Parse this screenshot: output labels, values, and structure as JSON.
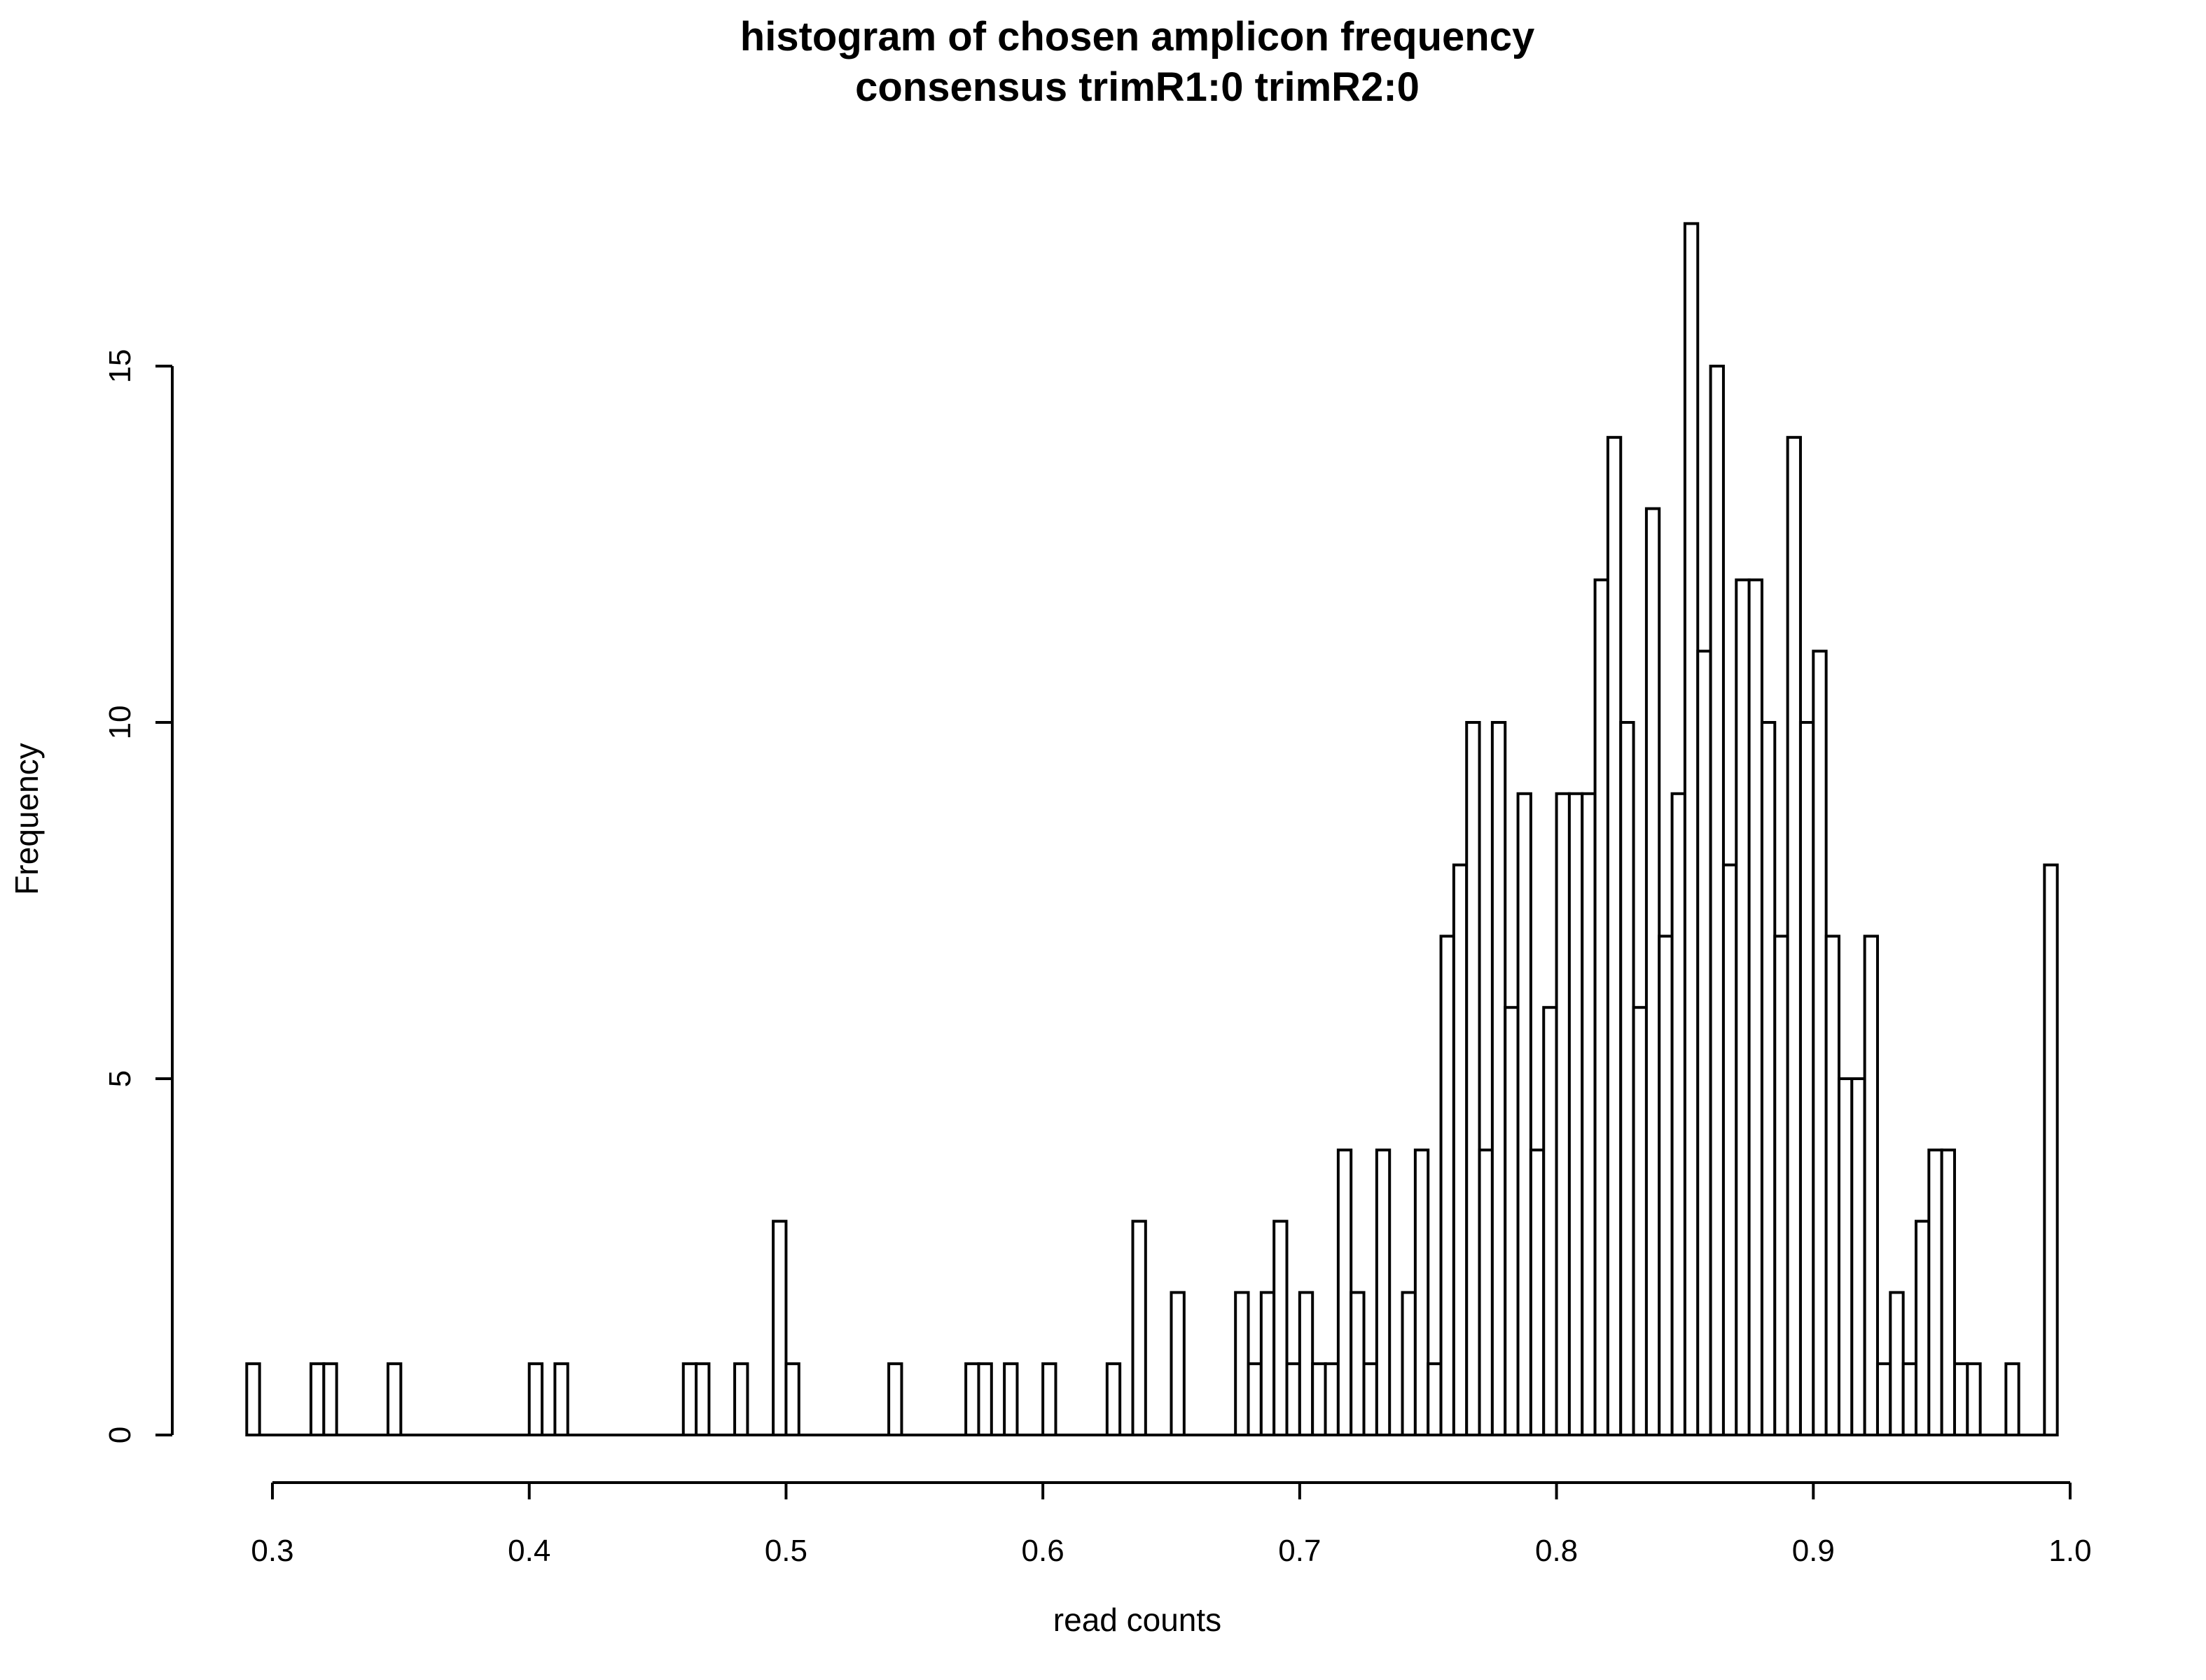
{
  "chart_data": {
    "type": "bar",
    "title": "histogram of chosen amplicon frequency",
    "subtitle": "consensus trimR1:0 trimR2:0",
    "xlabel": "read counts",
    "ylabel": "Frequency",
    "xlim": [
      0.29,
      1.0
    ],
    "ylim": [
      0,
      17
    ],
    "bin_width": 0.005,
    "bin_start": 0.29,
    "x_ticks": [
      0.3,
      0.4,
      0.5,
      0.6,
      0.7,
      0.8,
      0.9,
      1.0
    ],
    "x_tick_labels": [
      "0.3",
      "0.4",
      "0.5",
      "0.6",
      "0.7",
      "0.8",
      "0.9",
      "1.0"
    ],
    "y_ticks": [
      0,
      5,
      10,
      15
    ],
    "y_tick_labels": [
      "0",
      "5",
      "10",
      "15"
    ],
    "grid": false,
    "legend": "none",
    "bar_fill": "#ffffff",
    "bar_stroke": "#000000",
    "values": [
      1,
      0,
      0,
      0,
      0,
      1,
      1,
      0,
      0,
      0,
      0,
      1,
      0,
      0,
      0,
      0,
      0,
      0,
      0,
      0,
      0,
      0,
      1,
      0,
      1,
      0,
      0,
      0,
      0,
      0,
      0,
      0,
      0,
      0,
      1,
      1,
      0,
      0,
      1,
      0,
      0,
      3,
      1,
      0,
      0,
      0,
      0,
      0,
      0,
      0,
      1,
      0,
      0,
      0,
      0,
      0,
      1,
      1,
      0,
      1,
      0,
      0,
      1,
      0,
      0,
      0,
      0,
      1,
      0,
      3,
      0,
      0,
      2,
      0,
      0,
      0,
      0,
      2,
      1,
      2,
      3,
      1,
      2,
      1,
      1,
      4,
      2,
      1,
      4,
      0,
      2,
      4,
      1,
      7,
      8,
      10,
      4,
      10,
      6,
      9,
      4,
      6,
      9,
      9,
      9,
      12,
      14,
      10,
      6,
      13,
      7,
      9,
      17,
      11,
      15,
      8,
      12,
      12,
      10,
      7,
      14,
      10,
      11,
      7,
      5,
      5,
      7,
      1,
      2,
      1,
      3,
      4,
      4,
      1,
      1,
      0,
      0,
      1,
      0,
      0,
      8
    ]
  }
}
